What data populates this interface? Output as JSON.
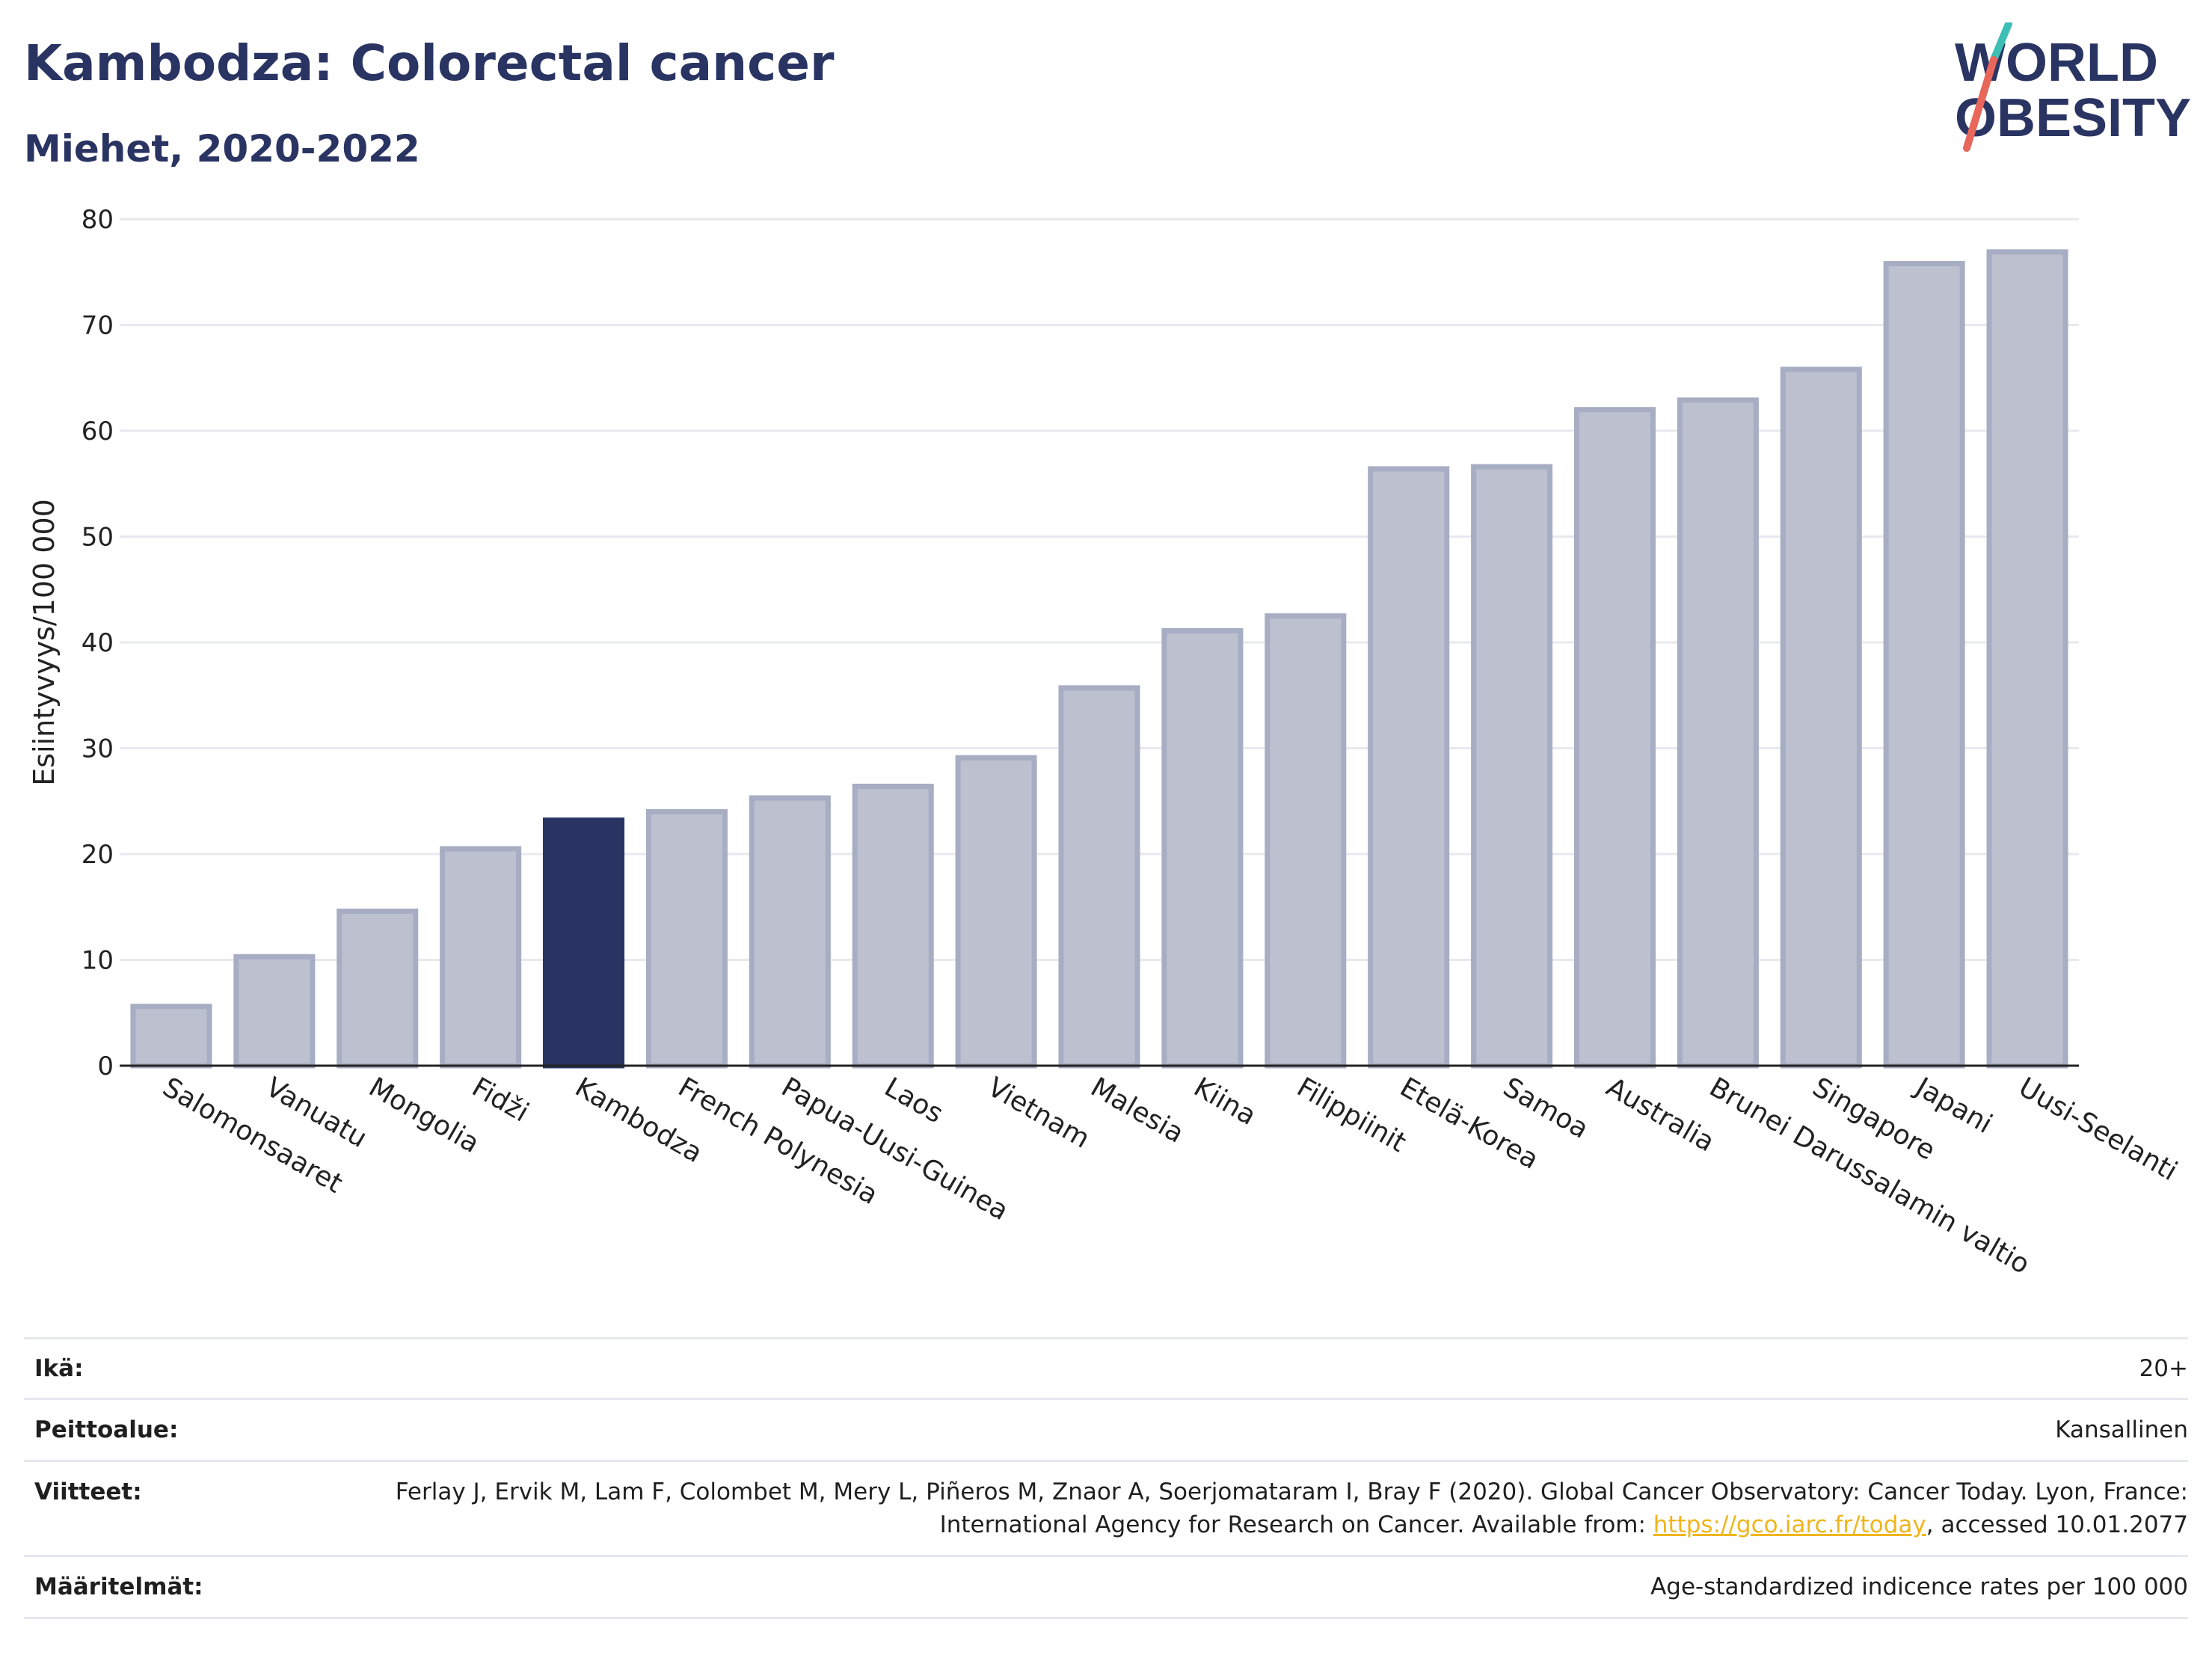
{
  "header": {
    "title": "Kambodza: Colorectal cancer",
    "subtitle": "Miehet, 2020-2022"
  },
  "logo": {
    "line1": "WORLD",
    "line2": "OBESITY"
  },
  "chart_data": {
    "type": "bar",
    "ylabel": "Esiintyvyys/100 000",
    "ylim": [
      0,
      80
    ],
    "yticks": [
      0,
      10,
      20,
      30,
      40,
      50,
      60,
      70,
      80
    ],
    "grid": true,
    "highlight": "Kambodza",
    "colors": {
      "bar": "#bcc0cf",
      "bar_edge": "#a7adc3",
      "highlight": "#2a3463",
      "grid": "#e7e9ef",
      "axis": "#222222"
    },
    "categories": [
      "Salomonsaaret",
      "Vanuatu",
      "Mongolia",
      "Fidži",
      "Kambodza",
      "French Polynesia",
      "Papua-Uusi-Guinea",
      "Laos",
      "Vietnam",
      "Malesia",
      "Kiina",
      "Filippiinit",
      "Etelä-Korea",
      "Samoa",
      "Australia",
      "Brunei Darussalamin valtio",
      "Singapore",
      "Japani",
      "Uusi-Seelanti"
    ],
    "values": [
      5.6,
      10.3,
      14.6,
      20.5,
      23.2,
      24.0,
      25.3,
      26.4,
      29.1,
      35.7,
      41.1,
      42.5,
      56.4,
      56.6,
      62.0,
      62.9,
      65.8,
      75.8,
      76.9
    ]
  },
  "info": {
    "age_label": "Ikä:",
    "age_value": "20+",
    "coverage_label": "Peittoalue:",
    "coverage_value": "Kansallinen",
    "refs_label": "Viitteet:",
    "refs_text": "Ferlay J, Ervik M, Lam F, Colombet M, Mery L, Piñeros M, Znaor A, Soerjomataram I, Bray F (2020). Global Cancer Observatory: Cancer Today. Lyon, France: International Agency for Research on Cancer. Available from: ",
    "refs_link": "https://gco.iarc.fr/today",
    "refs_suffix": ", accessed 10.01.2077",
    "defs_label": "Määritelmät:",
    "defs_value": "Age-standardized indicence rates per 100 000"
  }
}
